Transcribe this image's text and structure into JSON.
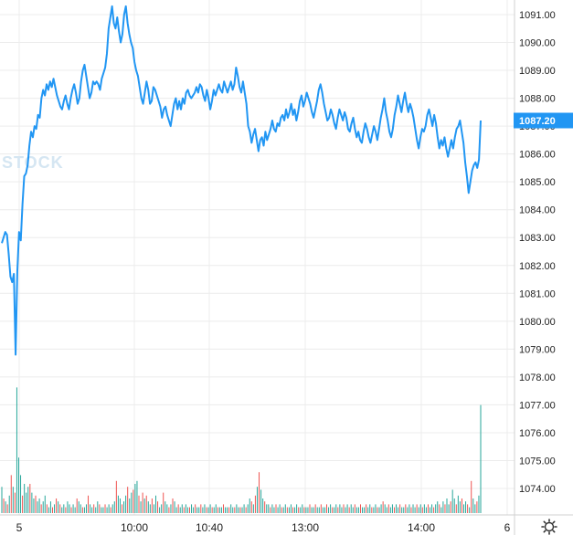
{
  "chart_data": {
    "type": "line",
    "title": "",
    "watermark": "STOCK",
    "colors": {
      "line": "#2196f3",
      "vol_up": "#26a69a",
      "vol_down": "#ef5350",
      "grid": "#ececec",
      "price_tag": "#2196f3"
    },
    "y_axis": {
      "ylim": [
        1073.3,
        1091.4
      ],
      "ticks": [
        "1074.00",
        "1075.00",
        "1076.00",
        "1077.00",
        "1078.00",
        "1079.00",
        "1080.00",
        "1081.00",
        "1082.00",
        "1083.00",
        "1084.00",
        "1085.00",
        "1086.00",
        "1087.00",
        "1088.00",
        "1089.00",
        "1090.00",
        "1091.00"
      ]
    },
    "x_axis": {
      "labels": [
        "5",
        "10:00",
        "10:40",
        "13:00",
        "14:00",
        "6"
      ]
    },
    "last_price_label": "1087.20",
    "series": [
      {
        "values": [
          1082.8,
          1083.0,
          1083.2,
          1083.1,
          1082.4,
          1081.6,
          1081.4,
          1081.7,
          1078.8,
          1081.8,
          1083.2,
          1082.9,
          1084.2,
          1085.2,
          1085.3,
          1085.6,
          1086.3,
          1086.8,
          1086.6,
          1087.0,
          1086.9,
          1087.4,
          1087.3,
          1088.0,
          1088.3,
          1088.1,
          1088.5,
          1088.3,
          1088.6,
          1088.4,
          1088.7,
          1088.4,
          1088.1,
          1087.9,
          1087.7,
          1087.6,
          1087.9,
          1088.1,
          1087.8,
          1087.6,
          1088.0,
          1088.3,
          1088.5,
          1088.2,
          1087.8,
          1088.0,
          1088.6,
          1089.0,
          1089.2,
          1088.8,
          1088.4,
          1088.0,
          1088.2,
          1088.6,
          1088.5,
          1088.6,
          1088.5,
          1088.3,
          1088.7,
          1088.9,
          1089.1,
          1089.6,
          1090.5,
          1090.9,
          1091.3,
          1090.7,
          1090.5,
          1090.9,
          1090.4,
          1090.0,
          1090.3,
          1091.0,
          1091.3,
          1090.7,
          1090.3,
          1090.0,
          1089.8,
          1089.3,
          1089.0,
          1088.8,
          1088.4,
          1088.0,
          1087.8,
          1088.2,
          1088.6,
          1088.3,
          1087.8,
          1087.9,
          1088.4,
          1088.3,
          1088.1,
          1087.9,
          1087.7,
          1087.3,
          1087.6,
          1087.7,
          1087.4,
          1087.2,
          1087.0,
          1087.4,
          1087.8,
          1088.0,
          1087.6,
          1087.9,
          1087.6,
          1088.0,
          1087.8,
          1088.2,
          1088.3,
          1088.1,
          1088.0,
          1088.1,
          1088.2,
          1088.4,
          1088.2,
          1088.5,
          1088.4,
          1088.1,
          1087.9,
          1088.3,
          1088.0,
          1087.6,
          1087.9,
          1088.3,
          1088.1,
          1088.3,
          1088.5,
          1088.3,
          1088.2,
          1088.6,
          1088.4,
          1088.2,
          1088.4,
          1088.6,
          1088.3,
          1088.5,
          1089.1,
          1088.8,
          1088.4,
          1088.2,
          1088.6,
          1088.2,
          1087.8,
          1087.0,
          1086.8,
          1086.4,
          1086.7,
          1086.9,
          1086.5,
          1086.1,
          1086.5,
          1086.6,
          1086.3,
          1086.8,
          1086.5,
          1086.7,
          1086.9,
          1087.2,
          1086.9,
          1086.8,
          1087.1,
          1087.0,
          1087.3,
          1087.4,
          1087.2,
          1087.6,
          1087.3,
          1087.5,
          1087.8,
          1087.4,
          1087.6,
          1087.2,
          1087.5,
          1087.9,
          1088.1,
          1087.7,
          1087.9,
          1088.2,
          1088.0,
          1087.8,
          1087.5,
          1087.3,
          1087.6,
          1087.9,
          1088.3,
          1088.5,
          1088.2,
          1087.8,
          1087.5,
          1087.2,
          1087.3,
          1087.6,
          1087.4,
          1087.1,
          1086.9,
          1087.3,
          1087.6,
          1087.4,
          1087.2,
          1087.5,
          1087.3,
          1086.9,
          1086.8,
          1087.1,
          1087.3,
          1086.9,
          1086.6,
          1086.8,
          1086.5,
          1086.4,
          1086.8,
          1087.1,
          1086.9,
          1086.6,
          1086.4,
          1086.7,
          1087.0,
          1086.8,
          1086.5,
          1086.9,
          1087.3,
          1087.6,
          1088.0,
          1087.5,
          1087.2,
          1086.8,
          1086.6,
          1086.9,
          1087.4,
          1087.7,
          1088.1,
          1087.8,
          1087.5,
          1087.9,
          1088.2,
          1087.8,
          1087.5,
          1087.8,
          1087.6,
          1087.3,
          1086.9,
          1086.5,
          1086.2,
          1086.6,
          1086.9,
          1086.8,
          1087.0,
          1087.4,
          1087.6,
          1087.3,
          1087.0,
          1087.4,
          1087.1,
          1086.6,
          1086.2,
          1086.5,
          1086.3,
          1086.6,
          1086.2,
          1085.9,
          1086.2,
          1086.5,
          1086.2,
          1086.6,
          1086.9,
          1087.0,
          1087.2,
          1086.8,
          1086.4,
          1085.7,
          1085.2,
          1084.6,
          1085.0,
          1085.4,
          1085.6,
          1085.7,
          1085.5,
          1085.8,
          1087.2
        ]
      }
    ],
    "volume": [
      {
        "v": 0.9,
        "up": true
      },
      {
        "v": 0.5,
        "up": false
      },
      {
        "v": 0.4,
        "up": true
      },
      {
        "v": 0.3,
        "up": false
      },
      {
        "v": 0.6,
        "up": true
      },
      {
        "v": 1.3,
        "up": false
      },
      {
        "v": 0.9,
        "up": true
      },
      {
        "v": 0.7,
        "up": false
      },
      {
        "v": 4.3,
        "up": true
      },
      {
        "v": 1.9,
        "up": true
      },
      {
        "v": 1.3,
        "up": true
      },
      {
        "v": 0.6,
        "up": false
      },
      {
        "v": 1.0,
        "up": true
      },
      {
        "v": 0.7,
        "up": true
      },
      {
        "v": 0.9,
        "up": true
      },
      {
        "v": 1.0,
        "up": false
      },
      {
        "v": 0.7,
        "up": true
      },
      {
        "v": 0.5,
        "up": true
      },
      {
        "v": 0.6,
        "up": false
      },
      {
        "v": 0.4,
        "up": true
      },
      {
        "v": 0.5,
        "up": true
      },
      {
        "v": 0.3,
        "up": false
      },
      {
        "v": 0.4,
        "up": true
      },
      {
        "v": 0.6,
        "up": true
      },
      {
        "v": 0.3,
        "up": false
      },
      {
        "v": 0.2,
        "up": true
      },
      {
        "v": 0.4,
        "up": true
      },
      {
        "v": 0.2,
        "up": false
      },
      {
        "v": 0.3,
        "up": true
      },
      {
        "v": 0.5,
        "up": false
      },
      {
        "v": 0.4,
        "up": true
      },
      {
        "v": 0.3,
        "up": false
      },
      {
        "v": 0.2,
        "up": true
      },
      {
        "v": 0.3,
        "up": true
      },
      {
        "v": 0.2,
        "up": false
      },
      {
        "v": 0.4,
        "up": true
      },
      {
        "v": 0.3,
        "up": true
      },
      {
        "v": 0.2,
        "up": false
      },
      {
        "v": 0.3,
        "up": true
      },
      {
        "v": 0.2,
        "up": true
      },
      {
        "v": 0.5,
        "up": false
      },
      {
        "v": 0.4,
        "up": true
      },
      {
        "v": 0.3,
        "up": true
      },
      {
        "v": 0.2,
        "up": false
      },
      {
        "v": 0.2,
        "up": true
      },
      {
        "v": 0.3,
        "up": true
      },
      {
        "v": 0.6,
        "up": false
      },
      {
        "v": 0.3,
        "up": true
      },
      {
        "v": 0.2,
        "up": true
      },
      {
        "v": 0.3,
        "up": false
      },
      {
        "v": 0.2,
        "up": true
      },
      {
        "v": 0.4,
        "up": true
      },
      {
        "v": 0.3,
        "up": false
      },
      {
        "v": 0.2,
        "up": true
      },
      {
        "v": 0.2,
        "up": true
      },
      {
        "v": 0.3,
        "up": false
      },
      {
        "v": 0.2,
        "up": true
      },
      {
        "v": 0.3,
        "up": true
      },
      {
        "v": 0.2,
        "up": false
      },
      {
        "v": 0.3,
        "up": true
      },
      {
        "v": 0.4,
        "up": true
      },
      {
        "v": 1.1,
        "up": false
      },
      {
        "v": 0.6,
        "up": true
      },
      {
        "v": 0.5,
        "up": true
      },
      {
        "v": 0.3,
        "up": false
      },
      {
        "v": 0.4,
        "up": true
      },
      {
        "v": 0.6,
        "up": true
      },
      {
        "v": 0.9,
        "up": false
      },
      {
        "v": 0.5,
        "up": true
      },
      {
        "v": 0.7,
        "up": true
      },
      {
        "v": 0.8,
        "up": false
      },
      {
        "v": 1.0,
        "up": true
      },
      {
        "v": 1.1,
        "up": true
      },
      {
        "v": 0.6,
        "up": false
      },
      {
        "v": 0.4,
        "up": true
      },
      {
        "v": 0.7,
        "up": false
      },
      {
        "v": 0.5,
        "up": true
      },
      {
        "v": 0.6,
        "up": false
      },
      {
        "v": 0.4,
        "up": true
      },
      {
        "v": 0.3,
        "up": true
      },
      {
        "v": 0.5,
        "up": false
      },
      {
        "v": 0.3,
        "up": true
      },
      {
        "v": 0.6,
        "up": true
      },
      {
        "v": 0.4,
        "up": false
      },
      {
        "v": 0.2,
        "up": true
      },
      {
        "v": 0.3,
        "up": true
      },
      {
        "v": 0.7,
        "up": false
      },
      {
        "v": 0.4,
        "up": true
      },
      {
        "v": 0.3,
        "up": true
      },
      {
        "v": 0.2,
        "up": false
      },
      {
        "v": 0.3,
        "up": true
      },
      {
        "v": 0.5,
        "up": false
      },
      {
        "v": 0.4,
        "up": true
      },
      {
        "v": 0.2,
        "up": true
      },
      {
        "v": 0.3,
        "up": false
      },
      {
        "v": 0.2,
        "up": true
      },
      {
        "v": 0.3,
        "up": true
      },
      {
        "v": 0.2,
        "up": false
      },
      {
        "v": 0.3,
        "up": true
      },
      {
        "v": 0.2,
        "up": true
      },
      {
        "v": 0.2,
        "up": false
      },
      {
        "v": 0.3,
        "up": true
      },
      {
        "v": 0.2,
        "up": true
      },
      {
        "v": 0.3,
        "up": false
      },
      {
        "v": 0.2,
        "up": true
      },
      {
        "v": 0.2,
        "up": true
      },
      {
        "v": 0.3,
        "up": false
      },
      {
        "v": 0.2,
        "up": true
      },
      {
        "v": 0.3,
        "up": true
      },
      {
        "v": 0.2,
        "up": false
      },
      {
        "v": 0.2,
        "up": true
      },
      {
        "v": 0.3,
        "up": true
      },
      {
        "v": 0.2,
        "up": false
      },
      {
        "v": 0.2,
        "up": true
      },
      {
        "v": 0.3,
        "up": true
      },
      {
        "v": 0.2,
        "up": false
      },
      {
        "v": 0.2,
        "up": true
      },
      {
        "v": 0.2,
        "up": true
      },
      {
        "v": 0.3,
        "up": false
      },
      {
        "v": 0.2,
        "up": true
      },
      {
        "v": 0.2,
        "up": true
      },
      {
        "v": 0.2,
        "up": false
      },
      {
        "v": 0.3,
        "up": true
      },
      {
        "v": 0.2,
        "up": true
      },
      {
        "v": 0.2,
        "up": false
      },
      {
        "v": 0.3,
        "up": true
      },
      {
        "v": 0.2,
        "up": true
      },
      {
        "v": 0.2,
        "up": false
      },
      {
        "v": 0.2,
        "up": true
      },
      {
        "v": 0.3,
        "up": true
      },
      {
        "v": 0.2,
        "up": false
      },
      {
        "v": 0.3,
        "up": true
      },
      {
        "v": 0.5,
        "up": true
      },
      {
        "v": 0.4,
        "up": false
      },
      {
        "v": 0.3,
        "up": true
      },
      {
        "v": 0.6,
        "up": false
      },
      {
        "v": 0.9,
        "up": true
      },
      {
        "v": 1.4,
        "up": false
      },
      {
        "v": 0.8,
        "up": true
      },
      {
        "v": 0.5,
        "up": true
      },
      {
        "v": 0.4,
        "up": false
      },
      {
        "v": 0.3,
        "up": true
      },
      {
        "v": 0.3,
        "up": true
      },
      {
        "v": 0.2,
        "up": false
      },
      {
        "v": 0.3,
        "up": true
      },
      {
        "v": 0.2,
        "up": true
      },
      {
        "v": 0.3,
        "up": false
      },
      {
        "v": 0.2,
        "up": true
      },
      {
        "v": 0.3,
        "up": true
      },
      {
        "v": 0.2,
        "up": false
      },
      {
        "v": 0.2,
        "up": true
      },
      {
        "v": 0.3,
        "up": true
      },
      {
        "v": 0.2,
        "up": false
      },
      {
        "v": 0.2,
        "up": true
      },
      {
        "v": 0.3,
        "up": true
      },
      {
        "v": 0.2,
        "up": false
      },
      {
        "v": 0.2,
        "up": true
      },
      {
        "v": 0.3,
        "up": true
      },
      {
        "v": 0.2,
        "up": false
      },
      {
        "v": 0.2,
        "up": true
      },
      {
        "v": 0.3,
        "up": true
      },
      {
        "v": 0.2,
        "up": false
      },
      {
        "v": 0.2,
        "up": true
      },
      {
        "v": 0.2,
        "up": true
      },
      {
        "v": 0.3,
        "up": false
      },
      {
        "v": 0.2,
        "up": true
      },
      {
        "v": 0.2,
        "up": true
      },
      {
        "v": 0.3,
        "up": false
      },
      {
        "v": 0.2,
        "up": true
      },
      {
        "v": 0.2,
        "up": true
      },
      {
        "v": 0.3,
        "up": false
      },
      {
        "v": 0.2,
        "up": true
      },
      {
        "v": 0.2,
        "up": true
      },
      {
        "v": 0.3,
        "up": false
      },
      {
        "v": 0.2,
        "up": true
      },
      {
        "v": 0.3,
        "up": true
      },
      {
        "v": 0.2,
        "up": false
      },
      {
        "v": 0.2,
        "up": true
      },
      {
        "v": 0.3,
        "up": true
      },
      {
        "v": 0.2,
        "up": false
      },
      {
        "v": 0.3,
        "up": true
      },
      {
        "v": 0.2,
        "up": true
      },
      {
        "v": 0.3,
        "up": false
      },
      {
        "v": 0.2,
        "up": true
      },
      {
        "v": 0.3,
        "up": true
      },
      {
        "v": 0.2,
        "up": false
      },
      {
        "v": 0.3,
        "up": true
      },
      {
        "v": 0.2,
        "up": true
      },
      {
        "v": 0.3,
        "up": false
      },
      {
        "v": 0.2,
        "up": true
      },
      {
        "v": 0.2,
        "up": true
      },
      {
        "v": 0.3,
        "up": false
      },
      {
        "v": 0.2,
        "up": true
      },
      {
        "v": 0.2,
        "up": true
      },
      {
        "v": 0.3,
        "up": false
      },
      {
        "v": 0.2,
        "up": true
      },
      {
        "v": 0.3,
        "up": true
      },
      {
        "v": 0.2,
        "up": false
      },
      {
        "v": 0.2,
        "up": true
      },
      {
        "v": 0.3,
        "up": true
      },
      {
        "v": 0.2,
        "up": false
      },
      {
        "v": 0.2,
        "up": true
      },
      {
        "v": 0.3,
        "up": true
      },
      {
        "v": 0.4,
        "up": false
      },
      {
        "v": 0.3,
        "up": true
      },
      {
        "v": 0.2,
        "up": true
      },
      {
        "v": 0.3,
        "up": false
      },
      {
        "v": 0.2,
        "up": true
      },
      {
        "v": 0.3,
        "up": true
      },
      {
        "v": 0.2,
        "up": false
      },
      {
        "v": 0.3,
        "up": true
      },
      {
        "v": 0.2,
        "up": true
      },
      {
        "v": 0.3,
        "up": false
      },
      {
        "v": 0.2,
        "up": true
      },
      {
        "v": 0.2,
        "up": true
      },
      {
        "v": 0.3,
        "up": false
      },
      {
        "v": 0.2,
        "up": true
      },
      {
        "v": 0.3,
        "up": true
      },
      {
        "v": 0.2,
        "up": false
      },
      {
        "v": 0.3,
        "up": true
      },
      {
        "v": 0.2,
        "up": true
      },
      {
        "v": 0.3,
        "up": false
      },
      {
        "v": 0.2,
        "up": true
      },
      {
        "v": 0.3,
        "up": true
      },
      {
        "v": 0.2,
        "up": false
      },
      {
        "v": 0.3,
        "up": true
      },
      {
        "v": 0.2,
        "up": true
      },
      {
        "v": 0.3,
        "up": false
      },
      {
        "v": 0.2,
        "up": true
      },
      {
        "v": 0.3,
        "up": true
      },
      {
        "v": 0.2,
        "up": false
      },
      {
        "v": 0.3,
        "up": true
      },
      {
        "v": 0.4,
        "up": true
      },
      {
        "v": 0.3,
        "up": false
      },
      {
        "v": 0.2,
        "up": true
      },
      {
        "v": 0.4,
        "up": true
      },
      {
        "v": 0.3,
        "up": false
      },
      {
        "v": 0.5,
        "up": true
      },
      {
        "v": 0.3,
        "up": true
      },
      {
        "v": 0.4,
        "up": false
      },
      {
        "v": 0.8,
        "up": true
      },
      {
        "v": 0.5,
        "up": true
      },
      {
        "v": 0.3,
        "up": false
      },
      {
        "v": 0.6,
        "up": true
      },
      {
        "v": 0.4,
        "up": true
      },
      {
        "v": 0.5,
        "up": false
      },
      {
        "v": 0.3,
        "up": true
      },
      {
        "v": 0.4,
        "up": true
      },
      {
        "v": 0.3,
        "up": false
      },
      {
        "v": 0.2,
        "up": true
      },
      {
        "v": 1.1,
        "up": false
      },
      {
        "v": 0.5,
        "up": true
      },
      {
        "v": 0.3,
        "up": true
      },
      {
        "v": 0.4,
        "up": false
      },
      {
        "v": 0.6,
        "up": true
      },
      {
        "v": 3.7,
        "up": true
      }
    ]
  }
}
